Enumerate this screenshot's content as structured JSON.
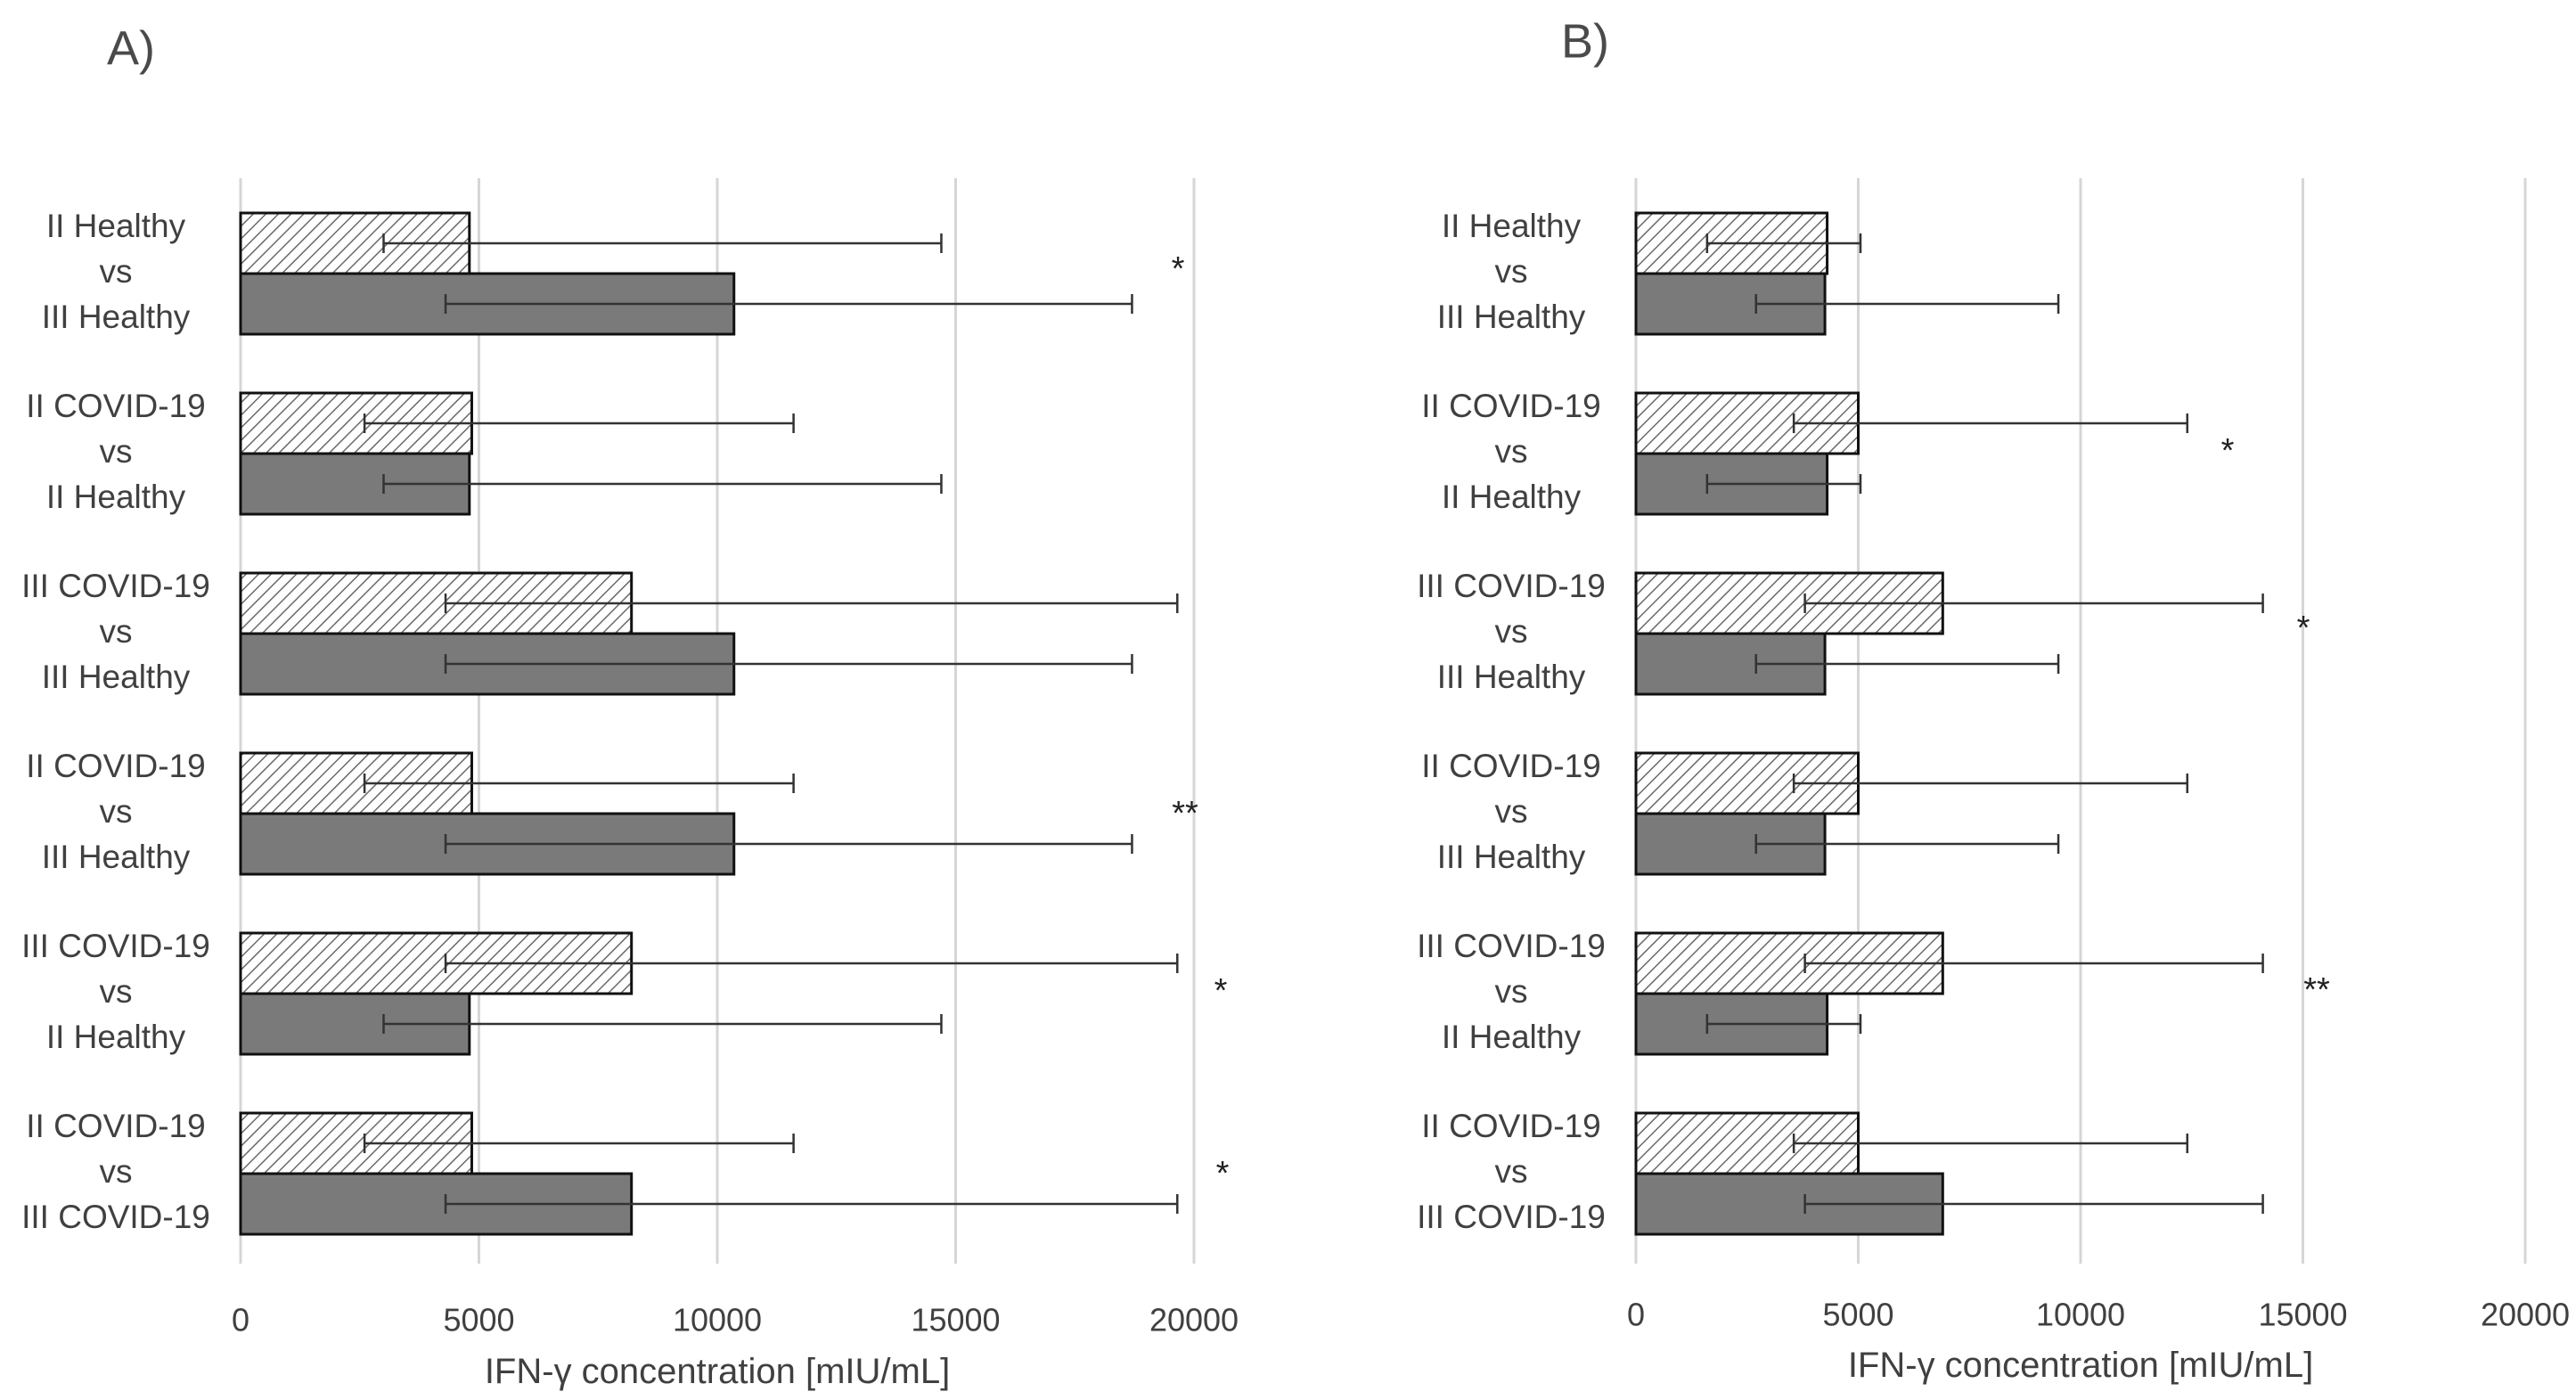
{
  "chart_data": [
    {
      "type": "bar",
      "orientation": "horizontal",
      "panel_label": "A)",
      "xlabel": "IFN-γ concentration [mIU/mL]",
      "xlim": [
        0,
        20000
      ],
      "xticks": [
        0,
        5000,
        10000,
        15000,
        20000
      ],
      "grid": true,
      "groups": [
        {
          "label_lines": [
            "II Healthy",
            "vs",
            "III Healthy"
          ],
          "bars": [
            {
              "style": "hatched",
              "value": 4800,
              "err_low": 3000,
              "err_high": 14700
            },
            {
              "style": "solid",
              "value": 10350,
              "err_low": 4300,
              "err_high": 18700
            }
          ],
          "significance": "*"
        },
        {
          "label_lines": [
            "II COVID-19",
            "vs",
            "II Healthy"
          ],
          "bars": [
            {
              "style": "hatched",
              "value": 4850,
              "err_low": 2600,
              "err_high": 11600
            },
            {
              "style": "solid",
              "value": 4800,
              "err_low": 3000,
              "err_high": 14700
            }
          ],
          "significance": ""
        },
        {
          "label_lines": [
            "III COVID-19",
            "vs",
            "III Healthy"
          ],
          "bars": [
            {
              "style": "hatched",
              "value": 8200,
              "err_low": 4300,
              "err_high": 19650
            },
            {
              "style": "solid",
              "value": 10350,
              "err_low": 4300,
              "err_high": 18700
            }
          ],
          "significance": ""
        },
        {
          "label_lines": [
            "II COVID-19",
            "vs",
            "III Healthy"
          ],
          "bars": [
            {
              "style": "hatched",
              "value": 4850,
              "err_low": 2600,
              "err_high": 11600
            },
            {
              "style": "solid",
              "value": 10350,
              "err_low": 4300,
              "err_high": 18700
            }
          ],
          "significance": "**"
        },
        {
          "label_lines": [
            "III COVID-19",
            "vs",
            "II Healthy"
          ],
          "bars": [
            {
              "style": "hatched",
              "value": 8200,
              "err_low": 4300,
              "err_high": 19650
            },
            {
              "style": "solid",
              "value": 4800,
              "err_low": 3000,
              "err_high": 14700
            }
          ],
          "significance": "*"
        },
        {
          "label_lines": [
            "II COVID-19",
            "vs",
            "III COVID-19"
          ],
          "bars": [
            {
              "style": "hatched",
              "value": 4850,
              "err_low": 2600,
              "err_high": 11600
            },
            {
              "style": "solid",
              "value": 8200,
              "err_low": 4300,
              "err_high": 19650
            }
          ],
          "significance": "*"
        }
      ]
    },
    {
      "type": "bar",
      "orientation": "horizontal",
      "panel_label": "B)",
      "xlabel": "IFN-γ concentration [mIU/mL]",
      "xlim": [
        0,
        20000
      ],
      "xticks": [
        0,
        5000,
        10000,
        15000,
        20000
      ],
      "grid": true,
      "groups": [
        {
          "label_lines": [
            "II Healthy",
            "vs",
            "III Healthy"
          ],
          "bars": [
            {
              "style": "hatched",
              "value": 4300,
              "err_low": 1600,
              "err_high": 5050
            },
            {
              "style": "solid",
              "value": 4250,
              "err_low": 2700,
              "err_high": 9500
            }
          ],
          "significance": ""
        },
        {
          "label_lines": [
            "II COVID-19",
            "vs",
            "II Healthy"
          ],
          "bars": [
            {
              "style": "hatched",
              "value": 5000,
              "err_low": 3550,
              "err_high": 12400
            },
            {
              "style": "solid",
              "value": 4300,
              "err_low": 1600,
              "err_high": 5050
            }
          ],
          "significance": "*"
        },
        {
          "label_lines": [
            "III COVID-19",
            "vs",
            "III Healthy"
          ],
          "bars": [
            {
              "style": "hatched",
              "value": 6900,
              "err_low": 3800,
              "err_high": 14100
            },
            {
              "style": "solid",
              "value": 4250,
              "err_low": 2700,
              "err_high": 9500
            }
          ],
          "significance": "*"
        },
        {
          "label_lines": [
            "II COVID-19",
            "vs",
            "III Healthy"
          ],
          "bars": [
            {
              "style": "hatched",
              "value": 5000,
              "err_low": 3550,
              "err_high": 12400
            },
            {
              "style": "solid",
              "value": 4250,
              "err_low": 2700,
              "err_high": 9500
            }
          ],
          "significance": ""
        },
        {
          "label_lines": [
            "III COVID-19",
            "vs",
            "II Healthy"
          ],
          "bars": [
            {
              "style": "hatched",
              "value": 6900,
              "err_low": 3800,
              "err_high": 14100
            },
            {
              "style": "solid",
              "value": 4300,
              "err_low": 1600,
              "err_high": 5050
            }
          ],
          "significance": "**"
        },
        {
          "label_lines": [
            "II COVID-19",
            "vs",
            "III COVID-19"
          ],
          "bars": [
            {
              "style": "hatched",
              "value": 5000,
              "err_low": 3550,
              "err_high": 12400
            },
            {
              "style": "solid",
              "value": 6900,
              "err_low": 3800,
              "err_high": 14100
            }
          ],
          "significance": ""
        }
      ]
    }
  ]
}
